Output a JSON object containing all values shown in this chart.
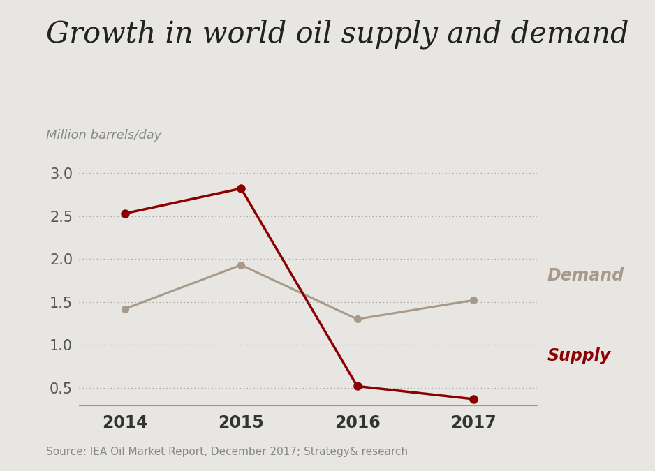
{
  "title": "Growth in world oil supply and demand",
  "ylabel_text": "Million barrels/day",
  "source": "Source: IEA Oil Market Report, December 2017; Strategy& research",
  "years": [
    2014,
    2015,
    2016,
    2017
  ],
  "supply": [
    2.53,
    2.82,
    0.52,
    0.37
  ],
  "demand": [
    1.42,
    1.93,
    1.3,
    1.52
  ],
  "supply_color": "#8B0000",
  "demand_color": "#A89A8A",
  "background_color": "#E8E6E3",
  "ylim": [
    0.3,
    3.15
  ],
  "yticks": [
    0.5,
    1.0,
    1.5,
    2.0,
    2.5,
    3.0
  ],
  "title_fontsize": 30,
  "ylabel_fontsize": 13,
  "source_fontsize": 11,
  "legend_fontsize": 17,
  "tick_fontsize": 15,
  "xtick_fontsize": 17
}
